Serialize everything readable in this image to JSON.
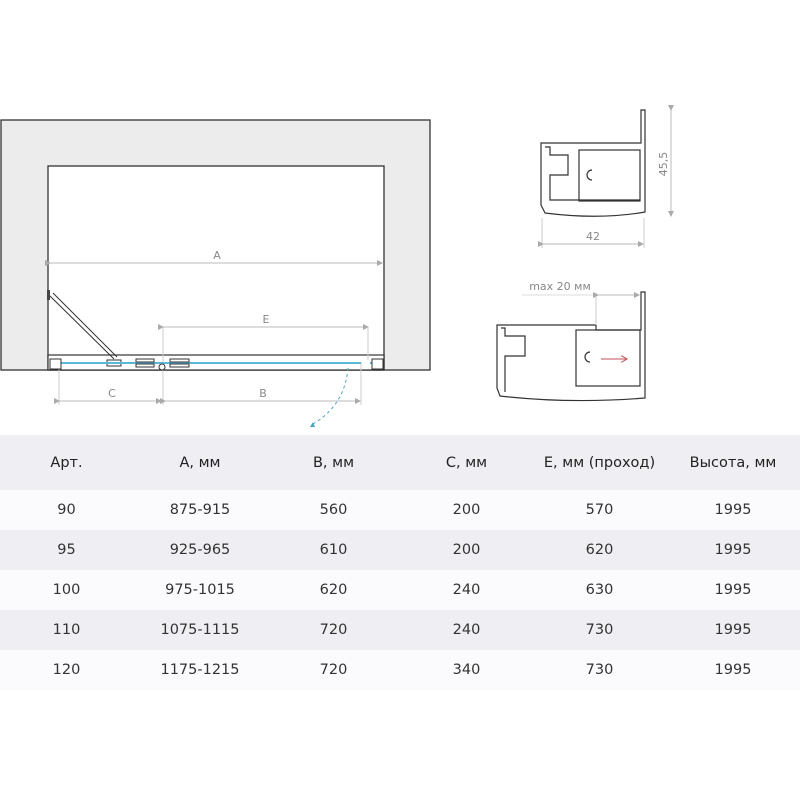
{
  "plan_diagram": {
    "dimension_labels": {
      "a": "A",
      "b": "B",
      "c": "C",
      "e": "E"
    },
    "glass_color": "#5bb8d6",
    "swing_arc_color": "#4aa6c0"
  },
  "profile_diagram": {
    "height_label": "45,5",
    "width_label": "42",
    "adjustment_label": "max 20 мм",
    "arrow_color": "#c0505a"
  },
  "table": {
    "headers": [
      "Арт.",
      "A, мм",
      "B, мм",
      "C, мм",
      "E, мм (проход)",
      "Высота, мм"
    ],
    "rows": [
      [
        "90",
        "875-915",
        "560",
        "200",
        "570",
        "1995"
      ],
      [
        "95",
        "925-965",
        "610",
        "200",
        "620",
        "1995"
      ],
      [
        "100",
        "975-1015",
        "620",
        "240",
        "630",
        "1995"
      ],
      [
        "110",
        "1075-1115",
        "720",
        "240",
        "730",
        "1995"
      ],
      [
        "120",
        "1175-1215",
        "720",
        "340",
        "730",
        "1995"
      ]
    ]
  }
}
